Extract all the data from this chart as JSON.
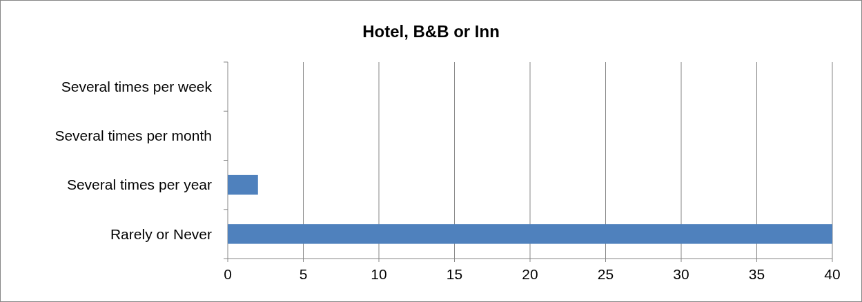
{
  "chart_data": {
    "type": "bar",
    "orientation": "horizontal",
    "title": "Hotel, B&B or Inn",
    "categories": [
      "Several times per week",
      "Several times per month",
      "Several times per year",
      "Rarely or Never"
    ],
    "values": [
      0,
      0,
      2,
      40
    ],
    "color": "#4f81bd",
    "xlim": [
      0,
      40
    ],
    "xticks": [
      0,
      5,
      10,
      15,
      20,
      25,
      30,
      35,
      40
    ],
    "grid": "x"
  }
}
